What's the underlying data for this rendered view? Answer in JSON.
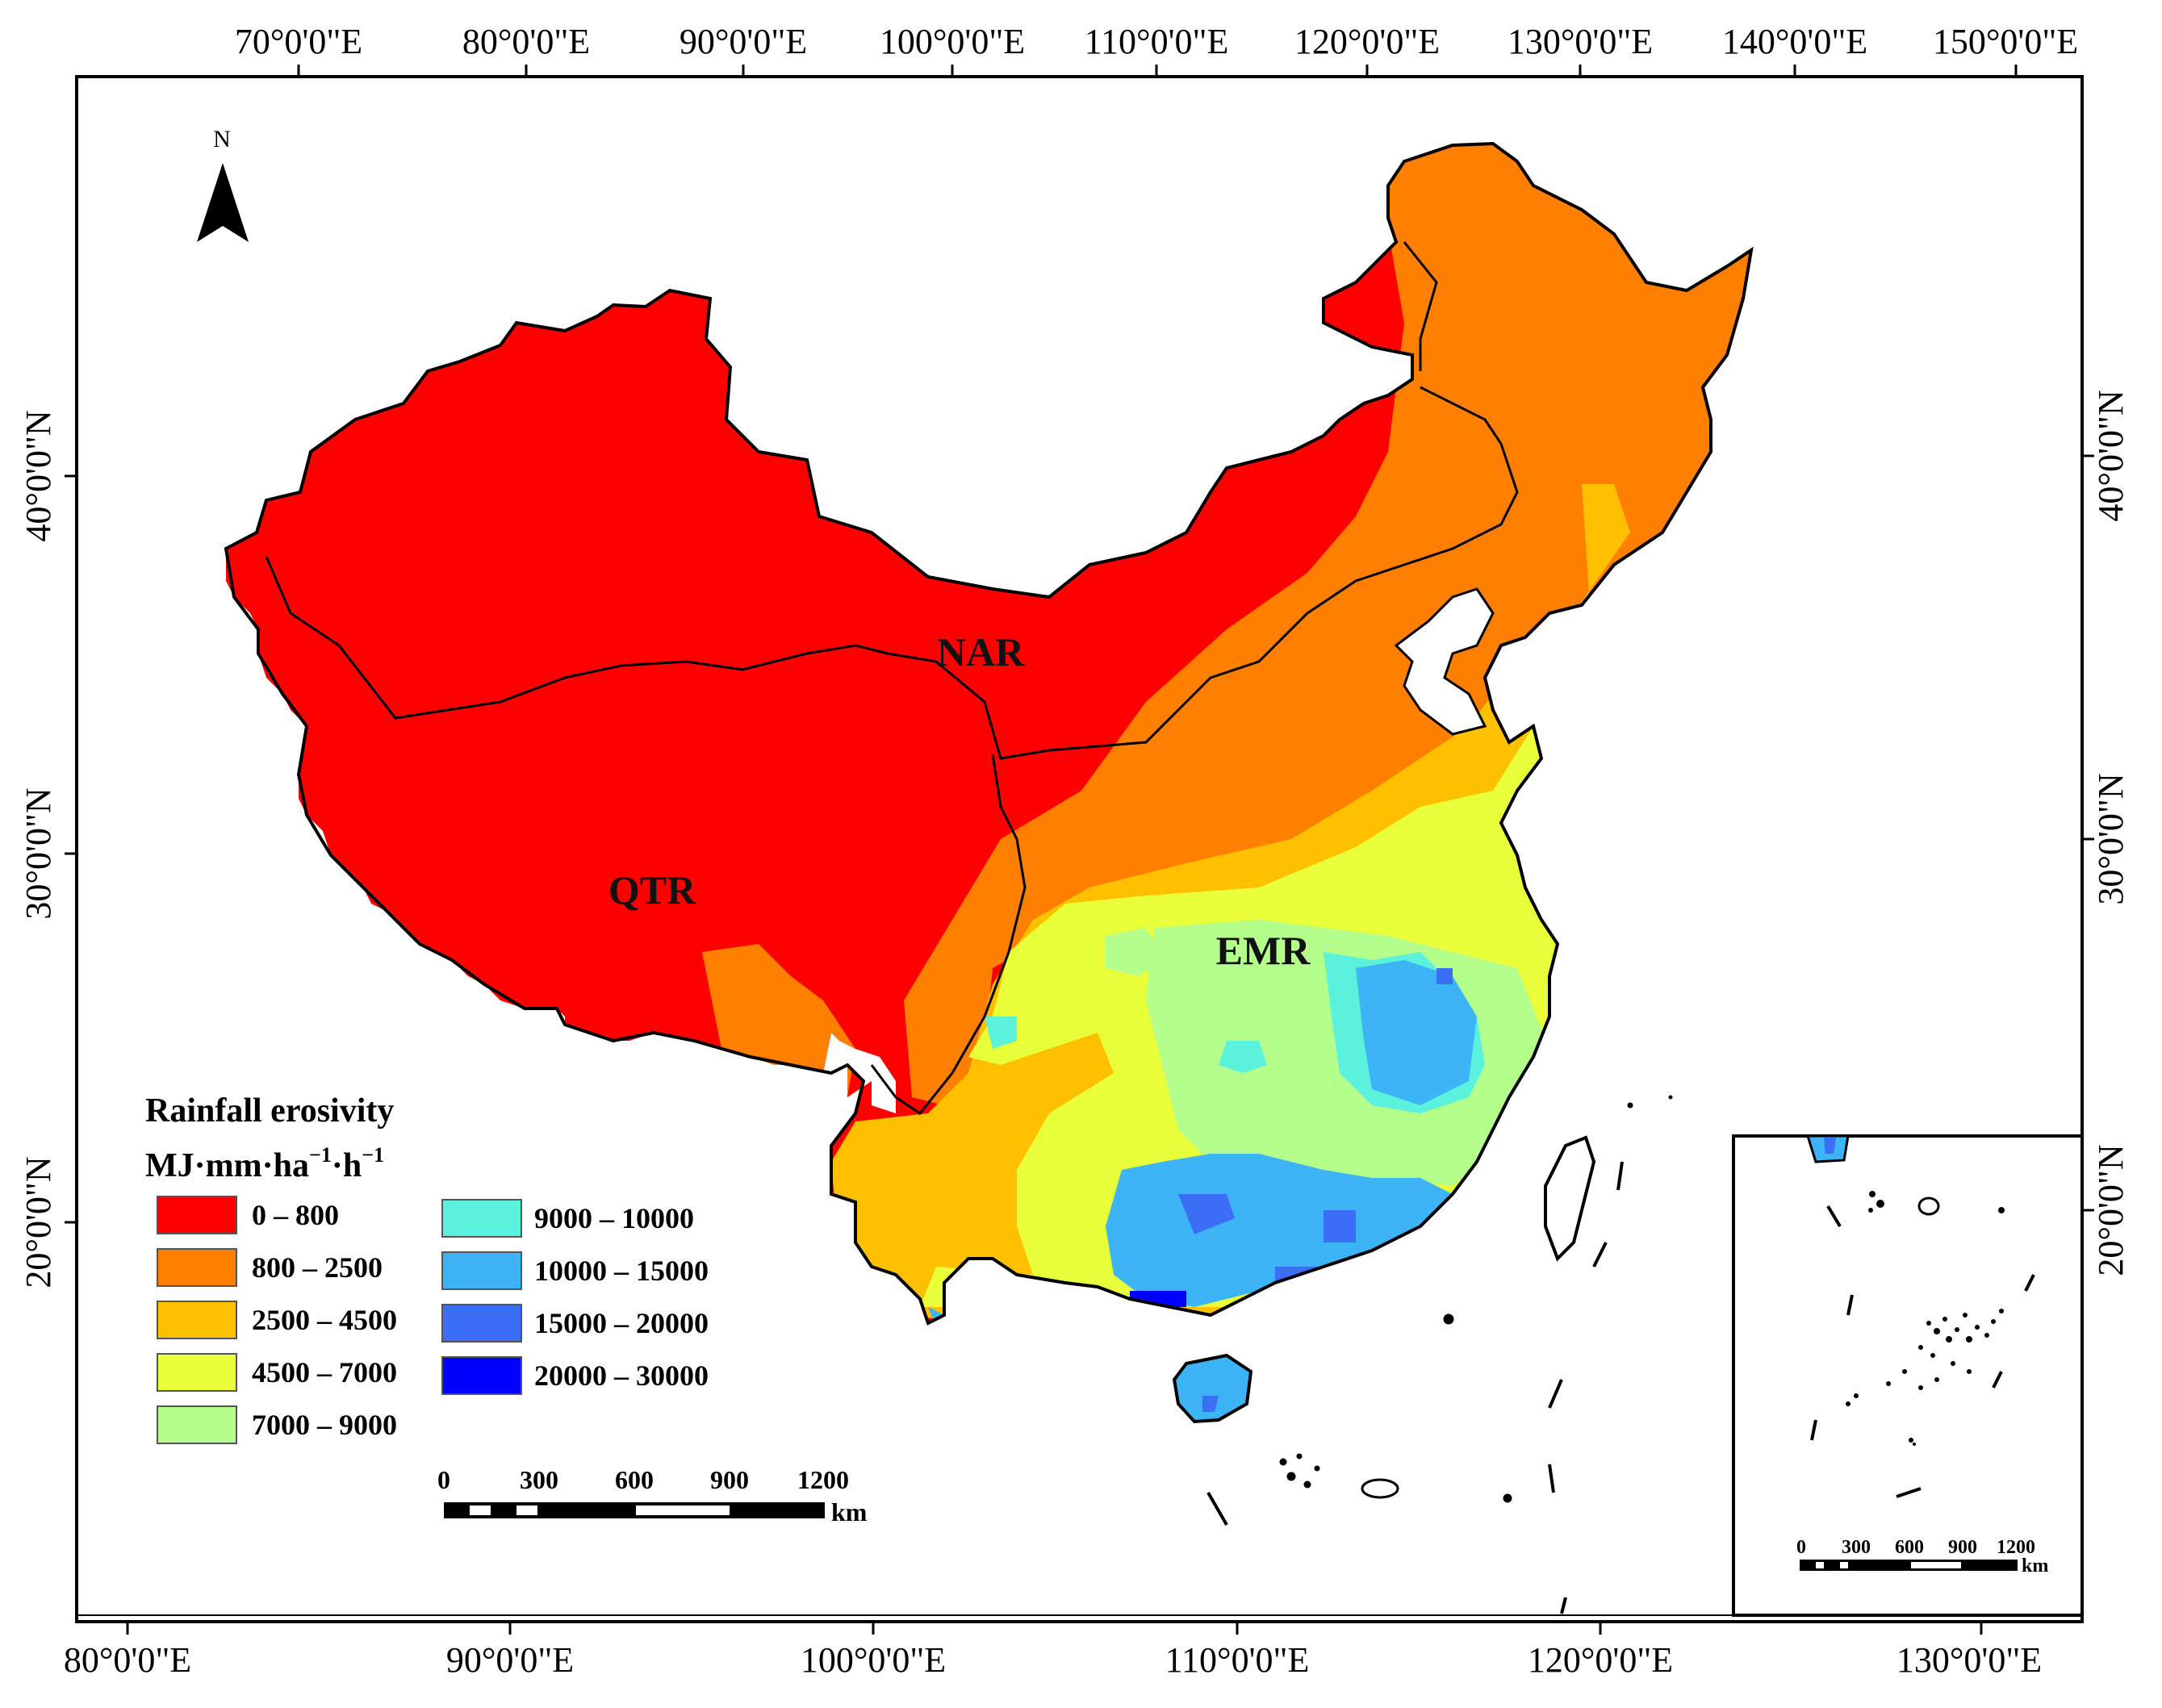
{
  "top_axis_labels": [
    "70°0'0\"E",
    "80°0'0\"E",
    "90°0'0\"E",
    "100°0'0\"E",
    "110°0'0\"E",
    "120°0'0\"E",
    "130°0'0\"E",
    "140°0'0\"E",
    "150°0'0\"E"
  ],
  "bottom_axis_labels": [
    "80°0'0\"E",
    "90°0'0\"E",
    "100°0'0\"E",
    "110°0'0\"E",
    "120°0'0\"E",
    "130°0'0\"E"
  ],
  "left_axis_labels": [
    "40°0'0\"N",
    "30°0'0\"N",
    "20°0'0\"N"
  ],
  "right_axis_labels": [
    "40°0'0\"N",
    "30°0'0\"N",
    "20°0'0\"N"
  ],
  "north_arrow": {
    "label": "N",
    "icon": "north-arrow-icon"
  },
  "regions": {
    "nar": "NAR",
    "qtr": "QTR",
    "emr": "EMR"
  },
  "legend": {
    "title": "Rainfall erosivity",
    "unit_main": "MJ·mm·ha",
    "unit_sup1": "−1",
    "unit_mid": "·h",
    "unit_sup2": "−1",
    "classes": [
      {
        "label": "0 – 800",
        "color": "#ff0000"
      },
      {
        "label": "800 – 2500",
        "color": "#ff7f00"
      },
      {
        "label": "2500 – 4500",
        "color": "#ffc000"
      },
      {
        "label": "4500 – 7000",
        "color": "#e8ff3a"
      },
      {
        "label": "7000 – 9000",
        "color": "#b4ff8c"
      },
      {
        "label": "9000 – 10000",
        "color": "#5af2dc"
      },
      {
        "label": "10000 – 15000",
        "color": "#3cb4f5"
      },
      {
        "label": "15000 – 20000",
        "color": "#3c6ef5"
      },
      {
        "label": "20000 – 30000",
        "color": "#0000ff"
      }
    ]
  },
  "scale_bar": {
    "ticks": [
      "0",
      "300",
      "600",
      "900",
      "1200"
    ],
    "unit": "km"
  },
  "inset_scale_bar": {
    "ticks": [
      "0",
      "300",
      "600",
      "900",
      "1200"
    ],
    "unit": "km"
  }
}
